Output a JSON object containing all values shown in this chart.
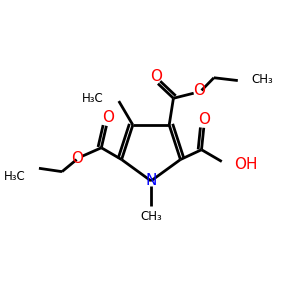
{
  "bg_color": "#ffffff",
  "bond_color": "#000000",
  "N_color": "#0000ff",
  "O_color": "#ff0000",
  "text_color": "#000000",
  "line_width": 2.0,
  "font_size": 10,
  "small_font_size": 8.5,
  "figsize": [
    3.0,
    3.0
  ],
  "dpi": 100,
  "xlim": [
    0,
    10
  ],
  "ylim": [
    0,
    10
  ]
}
